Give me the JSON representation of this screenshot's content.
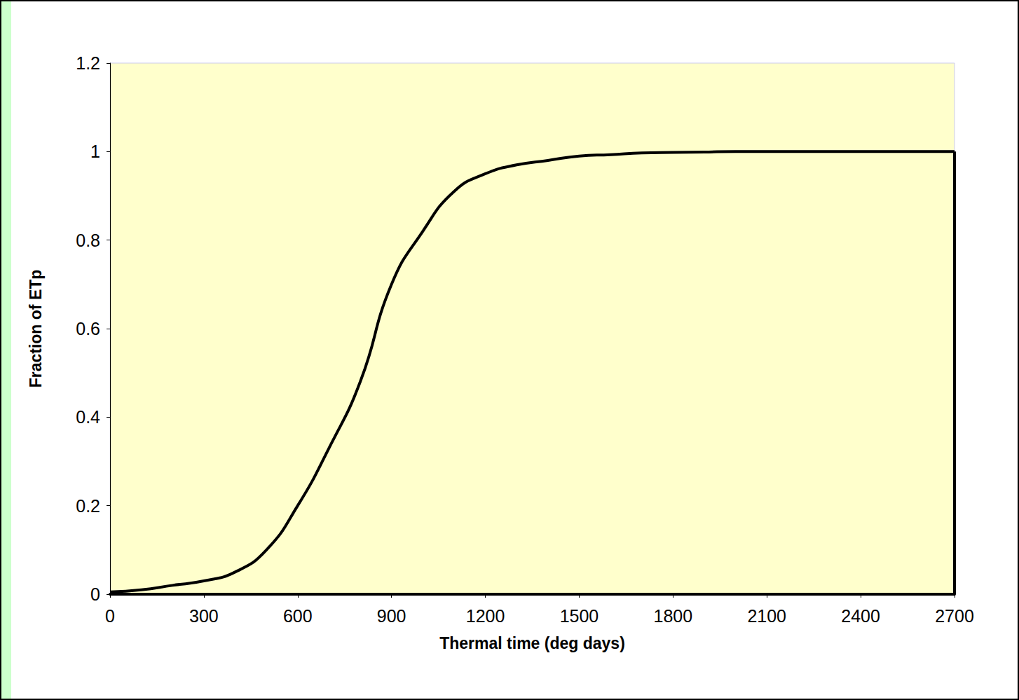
{
  "chart_data": {
    "type": "line",
    "x": [
      0,
      100,
      200,
      300,
      400,
      500,
      600,
      700,
      800,
      900,
      1000,
      1100,
      1200,
      1300,
      1400,
      1500,
      1600,
      1700,
      1800,
      1900,
      2000,
      2100,
      2200,
      2300,
      2400,
      2500,
      2600,
      2700
    ],
    "values": [
      0.005,
      0.01,
      0.02,
      0.03,
      0.05,
      0.1,
      0.2,
      0.33,
      0.48,
      0.7,
      0.82,
      0.91,
      0.95,
      0.97,
      0.98,
      0.99,
      0.993,
      0.997,
      0.998,
      0.999,
      1,
      1,
      1,
      1,
      1,
      1,
      1,
      1
    ],
    "color": "#000000",
    "xlabel": "Thermal time (deg days)",
    "ylabel": "Fraction of ETp",
    "xlim": [
      0,
      2700
    ],
    "xticks": [
      0,
      300,
      600,
      900,
      1200,
      1500,
      1800,
      2100,
      2400,
      2700
    ],
    "ylim": [
      0,
      1.2
    ],
    "yticks": [
      0,
      0.2,
      0.4,
      0.6,
      0.8,
      1,
      1.2
    ],
    "grid": false
  }
}
